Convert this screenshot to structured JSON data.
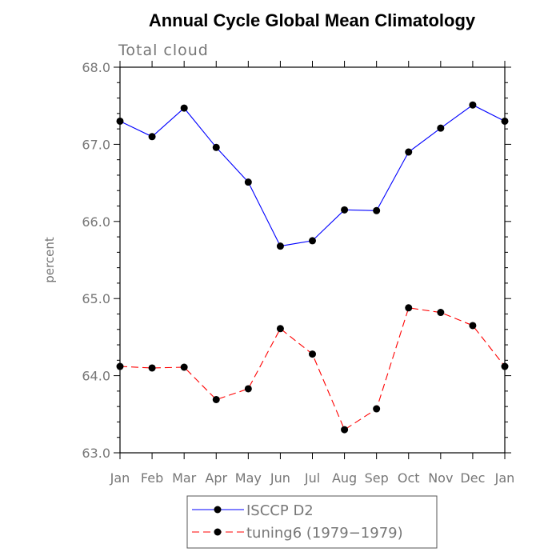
{
  "chart_data": {
    "type": "line",
    "title": "Annual Cycle Global Mean Climatology",
    "subtitle": "Total cloud",
    "ylabel": "percent",
    "xlabel": "",
    "ylim": [
      63.0,
      68.0
    ],
    "y_ticks": [
      "63.0",
      "64.0",
      "65.0",
      "66.0",
      "67.0",
      "68.0"
    ],
    "categories": [
      "Jan",
      "Feb",
      "Mar",
      "Apr",
      "May",
      "Jun",
      "Jul",
      "Aug",
      "Sep",
      "Oct",
      "Nov",
      "Dec",
      "Jan"
    ],
    "series": [
      {
        "name": "ISCCP D2",
        "color": "#0000ff",
        "dash": "solid",
        "values": [
          67.3,
          67.1,
          67.47,
          66.96,
          66.51,
          65.68,
          65.75,
          66.15,
          66.14,
          66.9,
          67.21,
          67.51,
          67.3
        ]
      },
      {
        "name": "tuning6 (1979−1979)",
        "color": "#ff0000",
        "dash": "dashed",
        "values": [
          64.12,
          64.1,
          64.11,
          63.69,
          63.83,
          64.61,
          64.28,
          63.3,
          63.57,
          64.88,
          64.82,
          64.65,
          64.12
        ]
      }
    ],
    "legend_position": "bottom-center",
    "grid": false
  }
}
